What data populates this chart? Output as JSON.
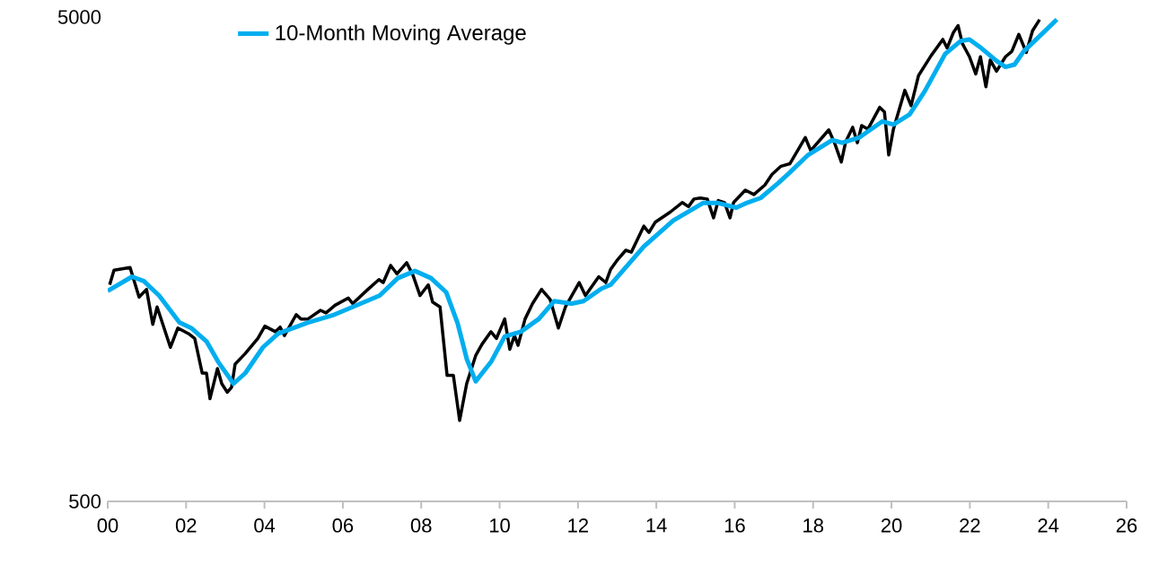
{
  "chart_data": {
    "type": "line",
    "log": "y",
    "marker": "none",
    "legend": "top left",
    "xlim": [
      2000,
      2026
    ],
    "ylim": [
      500,
      5000
    ],
    "yticks": [
      500,
      5000
    ],
    "xticks": [
      {
        "value": 2000,
        "label": "00"
      },
      {
        "value": 2002,
        "label": "02"
      },
      {
        "value": 2004,
        "label": "04"
      },
      {
        "value": 2006,
        "label": "06"
      },
      {
        "value": 2008,
        "label": "08"
      },
      {
        "value": 2010,
        "label": "10"
      },
      {
        "value": 2012,
        "label": "12"
      },
      {
        "value": 2014,
        "label": "14"
      },
      {
        "value": 2016,
        "label": "16"
      },
      {
        "value": 2018,
        "label": "18"
      },
      {
        "value": 2020,
        "label": "20"
      },
      {
        "value": 2022,
        "label": "22"
      },
      {
        "value": 2024,
        "label": "24"
      },
      {
        "value": 2026,
        "label": "26"
      }
    ],
    "series": [
      {
        "color": "#000000",
        "x": [
          2000.05,
          2000.16,
          2000.57,
          2000.8,
          2000.99,
          2001.15,
          2001.26,
          2001.6,
          2001.79,
          2002.06,
          2002.22,
          2002.41,
          2002.52,
          2002.61,
          2002.8,
          2002.91,
          2003.05,
          2003.16,
          2003.25,
          2003.51,
          2003.83,
          2004.01,
          2004.28,
          2004.4,
          2004.51,
          2004.81,
          2004.93,
          2005.11,
          2005.43,
          2005.57,
          2005.8,
          2006.14,
          2006.25,
          2006.64,
          2006.92,
          2007.03,
          2007.22,
          2007.38,
          2007.63,
          2007.79,
          2007.97,
          2008.18,
          2008.29,
          2008.48,
          2008.66,
          2008.82,
          2008.98,
          2009.16,
          2009.39,
          2009.55,
          2009.78,
          2009.92,
          2010.13,
          2010.26,
          2010.38,
          2010.47,
          2010.65,
          2010.84,
          2011.07,
          2011.29,
          2011.5,
          2011.68,
          2012.03,
          2012.19,
          2012.53,
          2012.71,
          2012.83,
          2012.99,
          2013.22,
          2013.36,
          2013.68,
          2013.81,
          2013.97,
          2014.2,
          2014.36,
          2014.66,
          2014.82,
          2014.96,
          2015.12,
          2015.3,
          2015.46,
          2015.58,
          2015.74,
          2015.88,
          2015.97,
          2016.27,
          2016.49,
          2016.77,
          2016.95,
          2017.18,
          2017.41,
          2017.8,
          2017.94,
          2018.4,
          2018.56,
          2018.72,
          2018.83,
          2019.01,
          2019.13,
          2019.24,
          2019.4,
          2019.7,
          2019.82,
          2019.93,
          2020.05,
          2020.34,
          2020.5,
          2020.69,
          2021.01,
          2021.31,
          2021.42,
          2021.58,
          2021.7,
          2021.81,
          2021.99,
          2022.15,
          2022.27,
          2022.41,
          2022.52,
          2022.68,
          2022.91,
          2023.07,
          2023.25,
          2023.44,
          2023.6,
          2023.78
        ],
        "values": [
          1400,
          1500,
          1520,
          1320,
          1370,
          1160,
          1260,
          1040,
          1140,
          1110,
          1085,
          920,
          920,
          815,
          940,
          875,
          840,
          860,
          960,
          1010,
          1085,
          1150,
          1120,
          1145,
          1100,
          1215,
          1190,
          1190,
          1240,
          1225,
          1270,
          1315,
          1280,
          1370,
          1435,
          1415,
          1535,
          1475,
          1555,
          1465,
          1330,
          1400,
          1290,
          1260,
          910,
          910,
          735,
          875,
          1000,
          1055,
          1120,
          1085,
          1190,
          1030,
          1100,
          1050,
          1190,
          1280,
          1370,
          1305,
          1140,
          1260,
          1415,
          1330,
          1455,
          1415,
          1505,
          1570,
          1650,
          1635,
          1850,
          1795,
          1885,
          1940,
          1980,
          2070,
          2030,
          2105,
          2115,
          2105,
          1925,
          2090,
          2070,
          1925,
          2070,
          2195,
          2150,
          2250,
          2365,
          2460,
          2490,
          2820,
          2650,
          2925,
          2730,
          2510,
          2760,
          2960,
          2750,
          2985,
          2935,
          3255,
          3185,
          2595,
          2935,
          3530,
          3280,
          3785,
          4160,
          4495,
          4315,
          4645,
          4800,
          4405,
          4140,
          3815,
          4140,
          3590,
          4075,
          3865,
          4140,
          4245,
          4605,
          4225,
          4685,
          4940
        ]
      },
      {
        "name": "10-Month Moving Average",
        "color": "#00aeef",
        "x": [
          2000.0,
          2000.62,
          2000.92,
          2001.31,
          2001.83,
          2002.13,
          2002.52,
          2002.82,
          2003.21,
          2003.51,
          2003.96,
          2004.35,
          2005.11,
          2005.73,
          2006.25,
          2006.94,
          2007.4,
          2007.84,
          2008.25,
          2008.64,
          2008.93,
          2009.16,
          2009.39,
          2009.78,
          2010.13,
          2010.54,
          2011.0,
          2011.39,
          2011.84,
          2012.14,
          2012.6,
          2012.83,
          2013.68,
          2014.43,
          2015.19,
          2015.58,
          2016.04,
          2016.33,
          2016.66,
          2017.11,
          2017.41,
          2017.87,
          2018.49,
          2018.74,
          2019.18,
          2019.77,
          2020.05,
          2020.46,
          2020.85,
          2021.37,
          2021.76,
          2021.99,
          2022.29,
          2022.68,
          2022.91,
          2023.14,
          2023.37,
          2023.76,
          2024.22
        ],
        "values": [
          1360,
          1455,
          1425,
          1330,
          1170,
          1140,
          1070,
          970,
          875,
          920,
          1040,
          1110,
          1170,
          1210,
          1260,
          1330,
          1445,
          1495,
          1445,
          1350,
          1165,
          985,
          885,
          970,
          1095,
          1120,
          1190,
          1295,
          1280,
          1295,
          1375,
          1400,
          1680,
          1900,
          2065,
          2065,
          2020,
          2070,
          2115,
          2270,
          2390,
          2595,
          2785,
          2750,
          2820,
          3045,
          3000,
          3145,
          3515,
          4195,
          4460,
          4495,
          4315,
          4060,
          3945,
          3990,
          4245,
          4550,
          4940
        ]
      }
    ]
  }
}
